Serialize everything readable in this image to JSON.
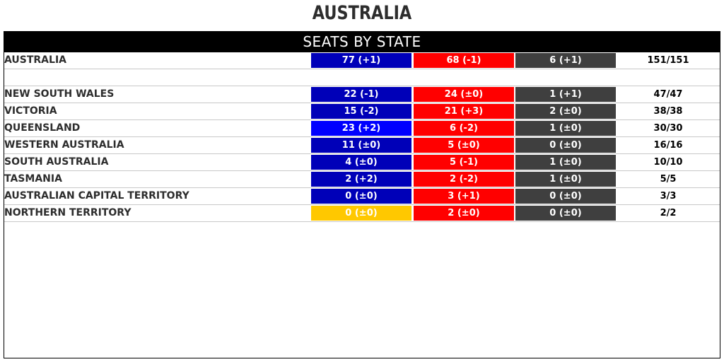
{
  "title": "AUSTRALIA",
  "banner": "SEATS BY STATE",
  "colors": {
    "coalition": "#0000b8",
    "coalition_qld": "#0000ff",
    "coalition_nt": "#ffc800",
    "labor": "#ff0000",
    "other": "#3f3f3f"
  },
  "national": {
    "name": "AUSTRALIA",
    "coalition": "77 (+1)",
    "labor": "68 (-1)",
    "other": "6 (+1)",
    "total": "151/151"
  },
  "states": [
    {
      "name": "NEW SOUTH WALES",
      "coalition": "22 (-1)",
      "labor": "24 (±0)",
      "other": "1 (+1)",
      "total": "47/47"
    },
    {
      "name": "VICTORIA",
      "coalition": "15 (-2)",
      "labor": "21 (+3)",
      "other": "2 (±0)",
      "total": "38/38"
    },
    {
      "name": "QUEENSLAND",
      "coalition": "23 (+2)",
      "labor": "6 (-2)",
      "other": "1 (±0)",
      "total": "30/30"
    },
    {
      "name": "WESTERN AUSTRALIA",
      "coalition": "11 (±0)",
      "labor": "5 (±0)",
      "other": "0 (±0)",
      "total": "16/16"
    },
    {
      "name": "SOUTH AUSTRALIA",
      "coalition": "4 (±0)",
      "labor": "5 (-1)",
      "other": "1 (±0)",
      "total": "10/10"
    },
    {
      "name": "TASMANIA",
      "coalition": "2 (+2)",
      "labor": "2 (-2)",
      "other": "1 (±0)",
      "total": "5/5"
    },
    {
      "name": "AUSTRALIAN CAPITAL TERRITORY",
      "coalition": "0 (±0)",
      "labor": "3 (+1)",
      "other": "0 (±0)",
      "total": "3/3"
    },
    {
      "name": "NORTHERN TERRITORY",
      "coalition": "0 (±0)",
      "labor": "2 (±0)",
      "other": "0 (±0)",
      "total": "2/2"
    }
  ]
}
